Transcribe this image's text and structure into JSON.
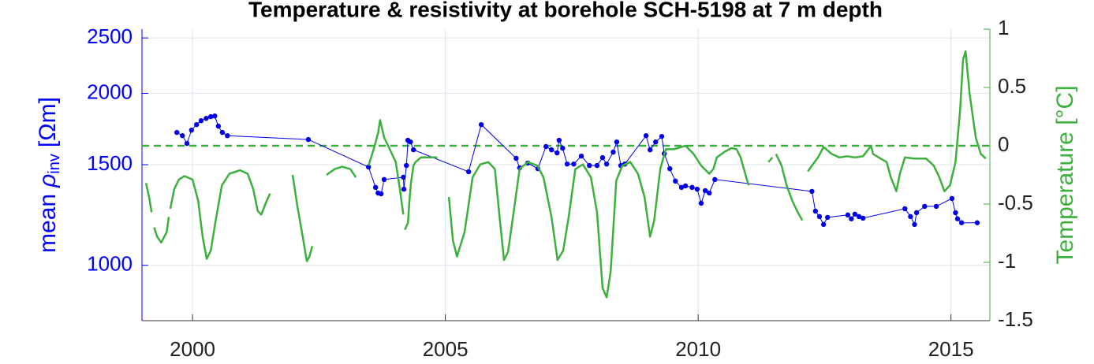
{
  "chart_data": {
    "type": "dual_axis_line",
    "title": "Temperature & resistivity at borehole SCH-5198 at 7 m depth",
    "y_label": [
      "mean",
      "ρ",
      "inv",
      "[Ωm]"
    ],
    "y2_label": "Temperature [°C]",
    "xlim": [
      1999.0,
      2015.77
    ],
    "xticks": [
      2000,
      2005,
      2010,
      2015
    ],
    "ylim": [
      800,
      2590
    ],
    "yticks": [
      1000,
      1500,
      2000,
      2500
    ],
    "y_scale": "log",
    "y2lim": [
      -1.5,
      1
    ],
    "y2ticks": [
      1,
      0.5,
      0,
      -0.5,
      -1,
      -1.5
    ],
    "grid": true,
    "y_color": "#0000ff",
    "y2_color": "#3cb03c",
    "reference_line": {
      "value": 0,
      "axis": "y2",
      "style": "dashed",
      "color": "#3cb03c"
    },
    "series": [
      {
        "type": "line_markers",
        "axis": "y",
        "color": "#0000e6",
        "x": [
          1999.69,
          1999.8,
          1999.89,
          1999.98,
          2000.08,
          2000.17,
          2000.27,
          2000.36,
          2000.44,
          2000.51,
          2000.59,
          2000.69,
          2002.29,
          2003.48,
          2003.62,
          2003.67,
          2003.73,
          2003.79,
          2004.17,
          2004.18,
          2004.23,
          2004.26,
          2004.31,
          2004.37,
          2005.46,
          2005.71,
          2006.4,
          2006.47,
          2006.63,
          2006.83,
          2006.99,
          2007.1,
          2007.21,
          2007.25,
          2007.32,
          2007.41,
          2007.54,
          2007.69,
          2007.85,
          2008.0,
          2008.11,
          2008.19,
          2008.32,
          2008.39,
          2008.47,
          2008.55,
          2008.97,
          2009.05,
          2009.16,
          2009.28,
          2009.33,
          2009.44,
          2009.55,
          2009.67,
          2009.75,
          2009.88,
          2009.98,
          2010.06,
          2010.14,
          2010.22,
          2010.33,
          2012.25,
          2012.32,
          2012.4,
          2012.48,
          2012.56,
          2012.96,
          2013.03,
          2013.1,
          2013.18,
          2013.26,
          2014.09,
          2014.2,
          2014.28,
          2014.32,
          2014.48,
          2014.71,
          2015.02,
          2015.09,
          2015.13,
          2015.21,
          2015.52
        ],
        "values": [
          1708,
          1686,
          1634,
          1724,
          1763,
          1791,
          1808,
          1820,
          1825,
          1752,
          1708,
          1686,
          1660,
          1486,
          1369,
          1338,
          1334,
          1413,
          1426,
          1359,
          1495,
          1655,
          1644,
          1593,
          1458,
          1763,
          1539,
          1481,
          1510,
          1476,
          1614,
          1593,
          1573,
          1655,
          1603,
          1504,
          1504,
          1553,
          1495,
          1495,
          1543,
          1504,
          1578,
          1644,
          1495,
          1504,
          1686,
          1593,
          1644,
          1681,
          1568,
          1476,
          1404,
          1369,
          1377,
          1369,
          1359,
          1284,
          1351,
          1338,
          1413,
          1347,
          1244,
          1217,
          1179,
          1213,
          1225,
          1206,
          1229,
          1217,
          1209,
          1256,
          1217,
          1179,
          1236,
          1268,
          1268,
          1309,
          1236,
          1206,
          1187,
          1187
        ]
      },
      {
        "type": "line",
        "axis": "y2",
        "color": "#3cb03c",
        "x": [
          1999.08,
          1999.14,
          1999.19,
          null,
          1999.24,
          1999.3,
          1999.38,
          1999.49,
          1999.53,
          null,
          1999.56,
          1999.64,
          1999.73,
          1999.84,
          2000.0,
          2000.11,
          2000.2,
          2000.28,
          2000.36,
          2000.47,
          2000.58,
          2000.73,
          2000.94,
          2001.09,
          2001.2,
          2001.29,
          2001.36,
          2001.45,
          2001.53,
          null,
          2001.98,
          2002.07,
          2002.18,
          2002.26,
          2002.31,
          2002.37,
          null,
          2002.65,
          2002.81,
          2002.96,
          2003.12,
          2003.23,
          null,
          2003.48,
          2003.57,
          2003.67,
          2003.71,
          2003.79,
          2003.9,
          2004.02,
          2004.1,
          2004.17,
          null,
          2004.2,
          2004.26,
          2004.29,
          2004.32,
          2004.37,
          2004.41,
          2004.52,
          2004.68,
          2004.84,
          null,
          2005.07,
          2005.15,
          2005.23,
          2005.38,
          2005.54,
          2005.69,
          2005.85,
          2005.98,
          2006.08,
          2006.16,
          2006.24,
          2006.35,
          2006.47,
          2006.63,
          2006.82,
          2006.94,
          2007.1,
          2007.22,
          2007.33,
          2007.44,
          2007.57,
          2007.72,
          2007.88,
          2008.0,
          2008.11,
          2008.19,
          2008.27,
          2008.38,
          2008.5,
          2008.66,
          2008.81,
          2008.94,
          2009.05,
          2009.13,
          2009.25,
          2009.36,
          2009.52,
          2009.75,
          2009.91,
          2010.06,
          2010.22,
          2010.3,
          2010.37,
          2010.53,
          2010.66,
          2010.76,
          2010.84,
          2010.97,
          2011.0,
          null,
          2011.39,
          2011.47,
          null,
          2011.54,
          2011.65,
          2011.75,
          2011.86,
          2011.97,
          2012.06,
          null,
          2012.17,
          2012.25,
          2012.37,
          2012.48,
          2012.64,
          2012.79,
          2012.95,
          2013.1,
          2013.26,
          2013.42,
          2013.46,
          2013.57,
          2013.73,
          2013.81,
          2013.92,
          2013.99,
          2014.09,
          2014.27,
          2014.51,
          2014.66,
          2014.77,
          2014.87,
          2014.98,
          2015.09,
          2015.18,
          2015.24,
          2015.29,
          2015.37,
          2015.49,
          2015.59,
          2015.69
        ],
        "values": [
          -0.32,
          -0.44,
          -0.57,
          null,
          -0.7,
          -0.78,
          -0.83,
          -0.74,
          -0.61,
          null,
          -0.54,
          -0.37,
          -0.29,
          -0.26,
          -0.29,
          -0.47,
          -0.78,
          -0.97,
          -0.9,
          -0.61,
          -0.34,
          -0.24,
          -0.21,
          -0.24,
          -0.37,
          -0.56,
          -0.59,
          -0.49,
          -0.41,
          null,
          -0.25,
          -0.51,
          -0.78,
          -0.99,
          -0.95,
          -0.86,
          null,
          -0.25,
          -0.2,
          -0.18,
          -0.2,
          -0.27,
          null,
          -0.17,
          -0.05,
          0.11,
          0.22,
          0.07,
          -0.03,
          -0.14,
          -0.37,
          -0.59,
          null,
          -0.72,
          -0.66,
          -0.47,
          -0.32,
          -0.17,
          -0.14,
          -0.1,
          -0.1,
          -0.1,
          null,
          -0.44,
          -0.81,
          -0.95,
          -0.74,
          -0.27,
          -0.16,
          -0.14,
          -0.2,
          -0.64,
          -0.98,
          -0.91,
          -0.57,
          -0.2,
          -0.14,
          -0.17,
          -0.27,
          -0.61,
          -0.98,
          -0.9,
          -0.61,
          -0.2,
          -0.16,
          -0.27,
          -0.57,
          -1.22,
          -1.3,
          -1.08,
          -0.3,
          -0.17,
          -0.14,
          -0.24,
          -0.44,
          -0.78,
          -0.64,
          -0.2,
          -0.03,
          -0.03,
          0.0,
          -0.07,
          -0.17,
          -0.24,
          -0.2,
          -0.1,
          -0.05,
          -0.02,
          -0.03,
          -0.1,
          -0.3,
          -0.34,
          null,
          -0.14,
          -0.1,
          null,
          -0.07,
          -0.17,
          -0.34,
          -0.47,
          -0.57,
          -0.64,
          null,
          -0.22,
          -0.17,
          -0.1,
          -0.01,
          -0.07,
          -0.1,
          -0.09,
          -0.1,
          -0.09,
          0.0,
          -0.07,
          -0.1,
          -0.14,
          -0.27,
          -0.39,
          -0.24,
          -0.1,
          -0.11,
          -0.11,
          -0.17,
          -0.27,
          -0.39,
          -0.34,
          -0.14,
          0.3,
          0.74,
          0.81,
          0.44,
          0.07,
          -0.07,
          -0.11
        ]
      }
    ]
  }
}
